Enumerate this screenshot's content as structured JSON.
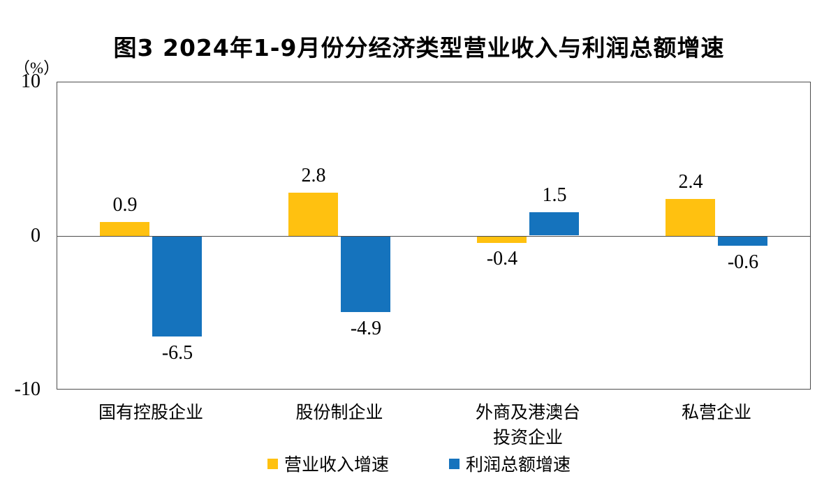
{
  "page": {
    "background": "#ffffff",
    "axis_color": "#4d4d4d",
    "text_color": "#000000"
  },
  "header": {
    "title": "图3 2024年1-9月份分经济类型营业收入与利润总额增速"
  },
  "y_axis": {
    "unit_label": "（%）"
  },
  "chart_data": {
    "type": "bar",
    "title": "图3 2024年1-9月份分经济类型营业收入与利润总额增速",
    "ylabel": "（%）",
    "ylim": [
      -10,
      10
    ],
    "yticks": [
      10,
      0,
      -10
    ],
    "grid": false,
    "legend_position": "bottom",
    "categories": [
      "国有控股企业",
      "股份制企业",
      "外商及港澳台投资企业",
      "私营企业"
    ],
    "categories_display": [
      "国有控股企业",
      "股份制企业",
      "外商及港澳台\n投资企业",
      "私营企业"
    ],
    "series": [
      {
        "id": "revenue",
        "name": "营业收入增速",
        "color": "#FFC110",
        "values": [
          0.9,
          2.8,
          -0.4,
          2.4
        ]
      },
      {
        "id": "profit",
        "name": "利润总额增速",
        "color": "#1573BD",
        "values": [
          -6.5,
          -4.9,
          1.5,
          -0.6
        ]
      }
    ]
  }
}
